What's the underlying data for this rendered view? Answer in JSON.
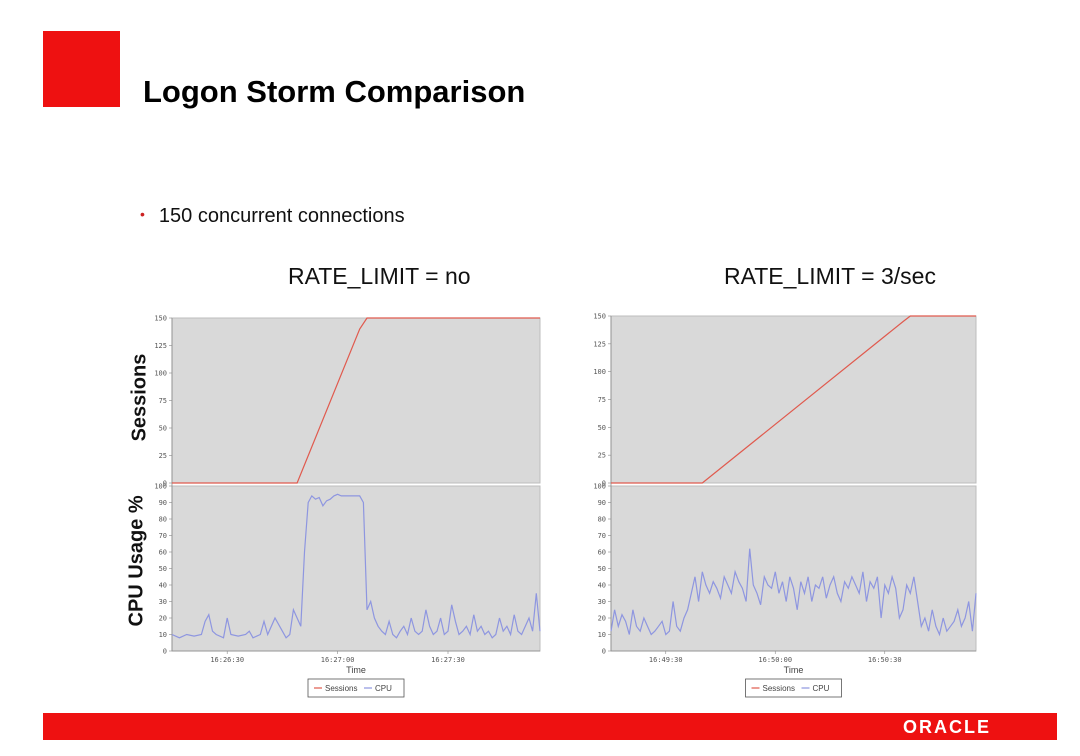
{
  "slide": {
    "title": "Logon Storm Comparison",
    "bullet": "150 concurrent connections",
    "footer_logo": "ORACLE",
    "colors": {
      "brand_red": "#ee1111",
      "plot_bg": "#d9d9d9",
      "sessions_line": "#e05a4e",
      "cpu_line": "#8e96e0"
    }
  },
  "y_labels": {
    "sessions": "Sessions",
    "cpu": "CPU Usage %"
  },
  "chart_data": [
    {
      "type": "line",
      "title": "RATE_LIMIT = no",
      "xlabel": "Time",
      "x_ticks": [
        "16:26:30",
        "16:27:00",
        "16:27:30"
      ],
      "legend": [
        "Sessions",
        "CPU"
      ],
      "legend_placement": "bottom",
      "grid": false,
      "top": {
        "ylabel": "Sessions",
        "ylim": [
          0,
          150
        ],
        "y_ticks": [
          0,
          25,
          50,
          75,
          100,
          125,
          150
        ],
        "series": [
          {
            "name": "Sessions",
            "x": [
              0,
              34,
              51,
              53,
              100
            ],
            "y": [
              0,
              0,
              140,
              150,
              150
            ]
          }
        ]
      },
      "bottom": {
        "ylabel": "CPU Usage %",
        "ylim": [
          0,
          100
        ],
        "y_ticks": [
          0,
          10,
          20,
          30,
          40,
          50,
          60,
          70,
          80,
          90,
          100
        ],
        "series": [
          {
            "name": "CPU",
            "x": [
              0,
              2,
              4,
              6,
              8,
              9,
              10,
              11,
              12,
              14,
              15,
              16,
              18,
              20,
              21,
              22,
              24,
              25,
              26,
              28,
              30,
              31,
              32,
              33,
              35,
              36,
              37,
              38,
              39,
              40,
              41,
              42,
              43,
              44,
              45,
              46,
              47,
              48,
              49,
              50,
              51,
              52,
              53,
              54,
              55,
              56,
              57,
              58,
              59,
              60,
              61,
              62,
              63,
              64,
              65,
              66,
              67,
              68,
              69,
              70,
              71,
              72,
              73,
              74,
              75,
              76,
              77,
              78,
              79,
              80,
              81,
              82,
              83,
              84,
              85,
              86,
              87,
              88,
              89,
              90,
              91,
              92,
              93,
              94,
              95,
              96,
              97,
              98,
              99,
              100
            ],
            "y": [
              10,
              8,
              10,
              9,
              10,
              18,
              22,
              12,
              10,
              8,
              20,
              10,
              9,
              10,
              12,
              8,
              10,
              18,
              10,
              20,
              12,
              8,
              10,
              25,
              15,
              60,
              90,
              94,
              92,
              93,
              88,
              91,
              92,
              94,
              95,
              94,
              94,
              94,
              94,
              94,
              94,
              90,
              25,
              30,
              20,
              15,
              12,
              10,
              18,
              10,
              8,
              12,
              15,
              10,
              20,
              12,
              10,
              12,
              25,
              15,
              10,
              12,
              20,
              10,
              12,
              28,
              18,
              10,
              12,
              15,
              10,
              22,
              12,
              15,
              10,
              12,
              8,
              10,
              20,
              12,
              15,
              10,
              22,
              12,
              10,
              15,
              20,
              12,
              35,
              12
            ]
          }
        ]
      }
    },
    {
      "type": "line",
      "title": "RATE_LIMIT = 3/sec",
      "xlabel": "Time",
      "x_ticks": [
        "16:49:30",
        "16:50:00",
        "16:50:30"
      ],
      "legend": [
        "Sessions",
        "CPU"
      ],
      "legend_placement": "bottom",
      "grid": false,
      "top": {
        "ylabel": "Sessions",
        "ylim": [
          0,
          150
        ],
        "y_ticks": [
          0,
          25,
          50,
          75,
          100,
          125,
          150
        ],
        "series": [
          {
            "name": "Sessions",
            "x": [
              0,
              25,
              80,
              82,
              100
            ],
            "y": [
              0,
              0,
              145,
              150,
              150
            ]
          }
        ]
      },
      "bottom": {
        "ylabel": "CPU Usage %",
        "ylim": [
          0,
          100
        ],
        "y_ticks": [
          0,
          10,
          20,
          30,
          40,
          50,
          60,
          70,
          80,
          90,
          100
        ],
        "series": [
          {
            "name": "CPU",
            "x": [
              0,
              1,
              2,
              3,
              4,
              5,
              6,
              7,
              8,
              9,
              10,
              11,
              12,
              13,
              14,
              15,
              16,
              17,
              18,
              19,
              20,
              21,
              22,
              23,
              24,
              25,
              26,
              27,
              28,
              29,
              30,
              31,
              32,
              33,
              34,
              35,
              36,
              37,
              38,
              39,
              40,
              41,
              42,
              43,
              44,
              45,
              46,
              47,
              48,
              49,
              50,
              51,
              52,
              53,
              54,
              55,
              56,
              57,
              58,
              59,
              60,
              61,
              62,
              63,
              64,
              65,
              66,
              67,
              68,
              69,
              70,
              71,
              72,
              73,
              74,
              75,
              76,
              77,
              78,
              79,
              80,
              81,
              82,
              83,
              84,
              85,
              86,
              87,
              88,
              89,
              90,
              91,
              92,
              93,
              94,
              95,
              96,
              97,
              98,
              99,
              100
            ],
            "y": [
              12,
              25,
              15,
              22,
              18,
              10,
              25,
              15,
              12,
              20,
              15,
              10,
              12,
              15,
              18,
              10,
              12,
              30,
              15,
              12,
              20,
              25,
              35,
              45,
              30,
              48,
              40,
              35,
              42,
              38,
              32,
              45,
              40,
              35,
              48,
              42,
              38,
              30,
              62,
              40,
              35,
              28,
              45,
              40,
              38,
              48,
              35,
              42,
              30,
              45,
              38,
              25,
              42,
              35,
              45,
              30,
              40,
              38,
              45,
              32,
              40,
              45,
              35,
              30,
              42,
              38,
              45,
              40,
              35,
              48,
              30,
              42,
              38,
              45,
              20,
              40,
              35,
              45,
              38,
              20,
              25,
              40,
              35,
              45,
              30,
              15,
              20,
              12,
              25,
              15,
              10,
              20,
              12,
              15,
              18,
              25,
              15,
              20,
              30,
              12,
              35
            ]
          }
        ]
      }
    }
  ]
}
